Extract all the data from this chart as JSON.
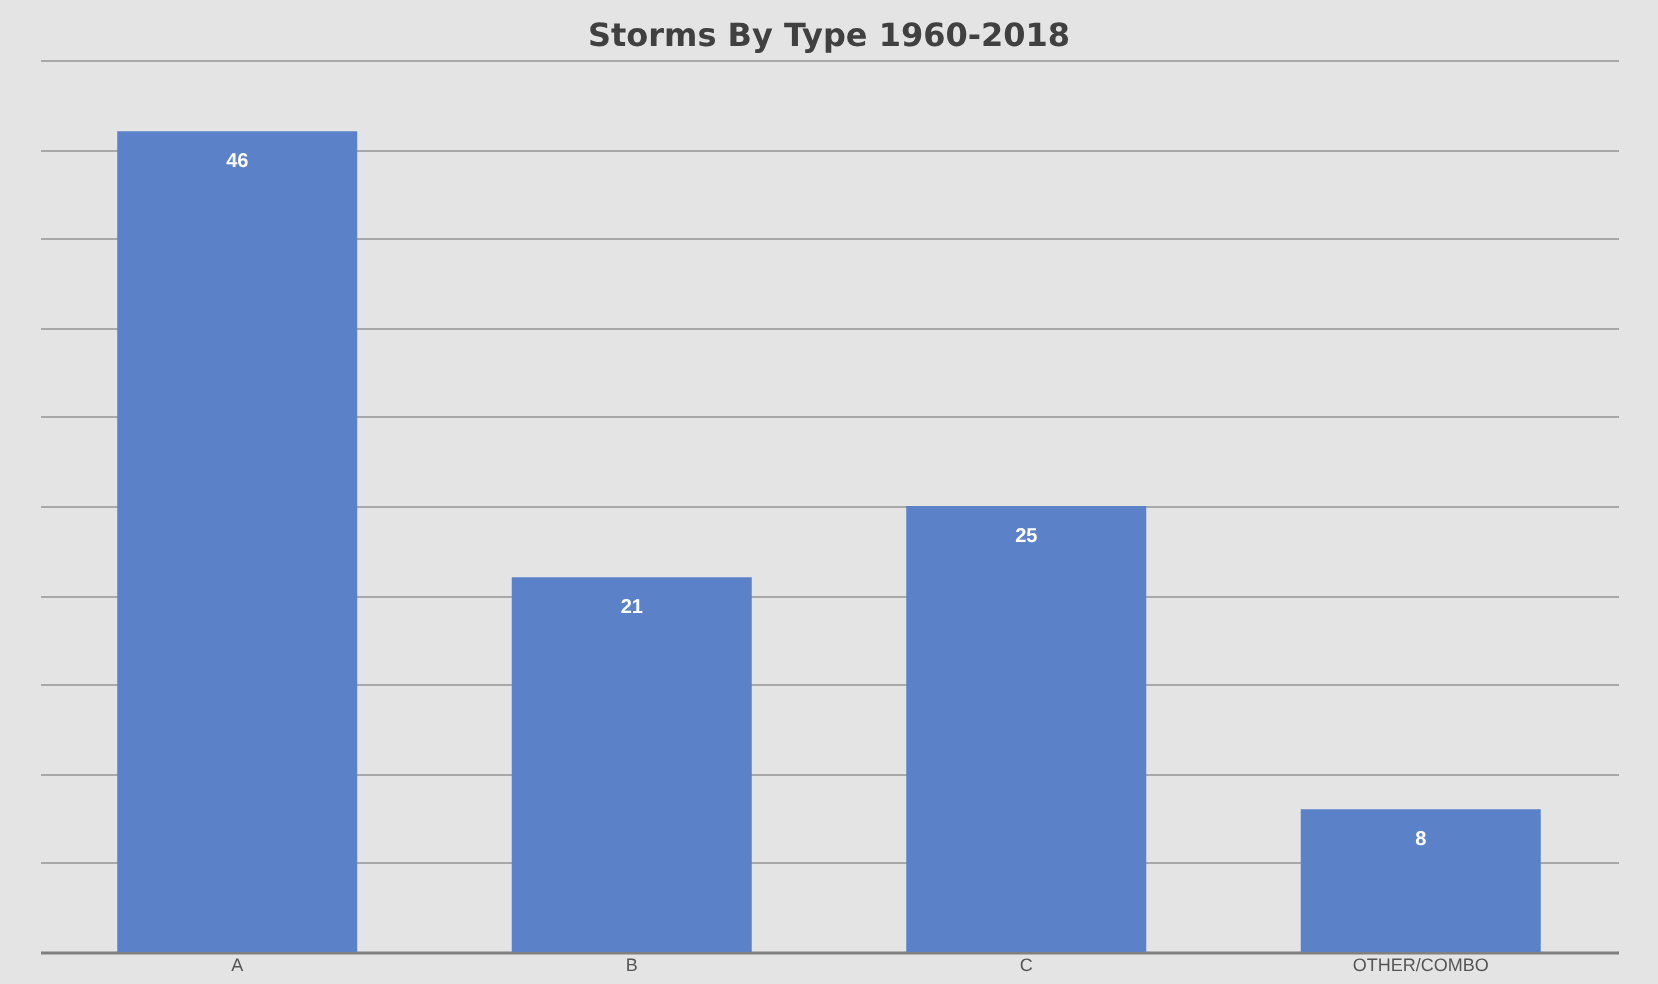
{
  "chart_data": {
    "type": "bar",
    "title": "Storms By Type 1960-2018",
    "categories": [
      "A",
      "B",
      "C",
      "OTHER/COMBO"
    ],
    "values": [
      46,
      21,
      25,
      8
    ],
    "color": "#5b82c9",
    "data_labels": true,
    "ylim": [
      0,
      50
    ],
    "yticks": [
      {
        "value": 0,
        "label": null
      },
      {
        "value": 5,
        "label": null
      },
      {
        "value": 10,
        "label": null
      },
      {
        "value": 15,
        "label": null
      },
      {
        "value": 20,
        "label": null
      },
      {
        "value": 25,
        "label": null
      },
      {
        "value": 30,
        "label": null
      },
      {
        "value": 35,
        "label": null
      },
      {
        "value": 40,
        "label": null
      },
      {
        "value": 45,
        "label": null
      },
      {
        "value": 50,
        "label": null
      }
    ],
    "grid": "y",
    "tick_labels": "x"
  }
}
